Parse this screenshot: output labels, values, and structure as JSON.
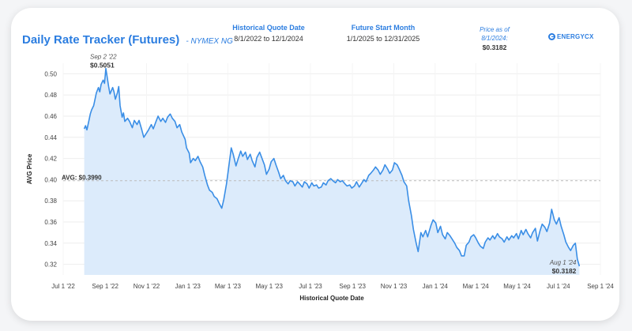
{
  "header": {
    "title_main": "Daily Rate Tracker",
    "title_paren": "(Futures)",
    "title_sub": "- NYMEX NG",
    "quote_date_label": "Historical Quote Date",
    "quote_date_value": "8/1/2022 to 12/1/2024",
    "future_start_label": "Future Start Month",
    "future_start_value": "1/1/2025 to 12/31/2025",
    "price_as_of_label_1": "Price as of",
    "price_as_of_label_2": "8/1/2024:",
    "price_as_of_value": "$0.3182",
    "logo_text": "ENERGYCX"
  },
  "colors": {
    "accent": "#2b7de0",
    "line": "#3a8ee6",
    "area": "#dcebfb",
    "avg_line": "#bbbbbb"
  },
  "chart_data": {
    "type": "area",
    "title": "Daily Rate Tracker (Futures)",
    "xlabel": "Historical Quote Date",
    "ylabel": "AVG Price",
    "ylim": [
      0.31,
      0.51
    ],
    "xlim": [
      "2022-07-01",
      "2024-09-01"
    ],
    "y_ticks": [
      "0.32",
      "0.34",
      "0.36",
      "0.38",
      "0.40",
      "0.42",
      "0.44",
      "0.46",
      "0.48",
      "0.50"
    ],
    "x_ticks": [
      {
        "date": "2022-07-01",
        "label": "Jul 1 '22"
      },
      {
        "date": "2022-09-01",
        "label": "Sep 1 '22"
      },
      {
        "date": "2022-11-01",
        "label": "Nov 1 '22"
      },
      {
        "date": "2023-01-01",
        "label": "Jan 1 '23"
      },
      {
        "date": "2023-03-01",
        "label": "Mar 1 '23"
      },
      {
        "date": "2023-05-01",
        "label": "May 1 '23"
      },
      {
        "date": "2023-07-01",
        "label": "Jul 1 '23"
      },
      {
        "date": "2023-09-01",
        "label": "Sep 1 '23"
      },
      {
        "date": "2023-11-01",
        "label": "Nov 1 '23"
      },
      {
        "date": "2024-01-01",
        "label": "Jan 1 '24"
      },
      {
        "date": "2024-03-01",
        "label": "Mar 1 '24"
      },
      {
        "date": "2024-05-01",
        "label": "May 1 '24"
      },
      {
        "date": "2024-07-01",
        "label": "Jul 1 '24"
      },
      {
        "date": "2024-09-01",
        "label": "Sep 1 '24"
      }
    ],
    "grid": true,
    "reference_line": {
      "value": 0.399,
      "label": "AVG: $0.3990"
    },
    "annotations": [
      {
        "date": "2022-09-02",
        "date_label": "Sep 2 '22",
        "value_label": "$0.5051"
      },
      {
        "date": "2024-08-01",
        "date_label": "Aug 1 '24",
        "value_label": "$0.3182"
      }
    ],
    "series": [
      {
        "points": [
          [
            "2022-08-01",
            0.448
          ],
          [
            "2022-08-03",
            0.451
          ],
          [
            "2022-08-05",
            0.447
          ],
          [
            "2022-08-08",
            0.456
          ],
          [
            "2022-08-10",
            0.462
          ],
          [
            "2022-08-12",
            0.466
          ],
          [
            "2022-08-15",
            0.47
          ],
          [
            "2022-08-17",
            0.476
          ],
          [
            "2022-08-19",
            0.482
          ],
          [
            "2022-08-22",
            0.487
          ],
          [
            "2022-08-24",
            0.483
          ],
          [
            "2022-08-26",
            0.49
          ],
          [
            "2022-08-29",
            0.494
          ],
          [
            "2022-08-31",
            0.491
          ],
          [
            "2022-09-02",
            0.505
          ],
          [
            "2022-09-06",
            0.488
          ],
          [
            "2022-09-08",
            0.481
          ],
          [
            "2022-09-12",
            0.487
          ],
          [
            "2022-09-14",
            0.483
          ],
          [
            "2022-09-16",
            0.476
          ],
          [
            "2022-09-19",
            0.482
          ],
          [
            "2022-09-21",
            0.488
          ],
          [
            "2022-09-23",
            0.47
          ],
          [
            "2022-09-26",
            0.459
          ],
          [
            "2022-09-28",
            0.463
          ],
          [
            "2022-09-30",
            0.455
          ],
          [
            "2022-10-04",
            0.458
          ],
          [
            "2022-10-07",
            0.455
          ],
          [
            "2022-10-11",
            0.449
          ],
          [
            "2022-10-14",
            0.456
          ],
          [
            "2022-10-18",
            0.452
          ],
          [
            "2022-10-21",
            0.456
          ],
          [
            "2022-10-25",
            0.447
          ],
          [
            "2022-10-28",
            0.44
          ],
          [
            "2022-11-01",
            0.444
          ],
          [
            "2022-11-04",
            0.447
          ],
          [
            "2022-11-08",
            0.452
          ],
          [
            "2022-11-11",
            0.448
          ],
          [
            "2022-11-15",
            0.455
          ],
          [
            "2022-11-18",
            0.46
          ],
          [
            "2022-11-22",
            0.455
          ],
          [
            "2022-11-25",
            0.458
          ],
          [
            "2022-11-29",
            0.454
          ],
          [
            "2022-12-02",
            0.459
          ],
          [
            "2022-12-06",
            0.462
          ],
          [
            "2022-12-09",
            0.458
          ],
          [
            "2022-12-13",
            0.455
          ],
          [
            "2022-12-16",
            0.449
          ],
          [
            "2022-12-20",
            0.452
          ],
          [
            "2022-12-23",
            0.445
          ],
          [
            "2022-12-28",
            0.438
          ],
          [
            "2022-12-30",
            0.43
          ],
          [
            "2023-01-03",
            0.425
          ],
          [
            "2023-01-05",
            0.416
          ],
          [
            "2023-01-09",
            0.42
          ],
          [
            "2023-01-12",
            0.418
          ],
          [
            "2023-01-16",
            0.422
          ],
          [
            "2023-01-19",
            0.417
          ],
          [
            "2023-01-23",
            0.412
          ],
          [
            "2023-01-26",
            0.404
          ],
          [
            "2023-01-30",
            0.395
          ],
          [
            "2023-02-02",
            0.39
          ],
          [
            "2023-02-06",
            0.388
          ],
          [
            "2023-02-09",
            0.384
          ],
          [
            "2023-02-13",
            0.382
          ],
          [
            "2023-02-16",
            0.378
          ],
          [
            "2023-02-20",
            0.373
          ],
          [
            "2023-02-23",
            0.381
          ],
          [
            "2023-02-27",
            0.396
          ],
          [
            "2023-03-02",
            0.41
          ],
          [
            "2023-03-06",
            0.43
          ],
          [
            "2023-03-09",
            0.424
          ],
          [
            "2023-03-13",
            0.413
          ],
          [
            "2023-03-16",
            0.419
          ],
          [
            "2023-03-20",
            0.427
          ],
          [
            "2023-03-23",
            0.422
          ],
          [
            "2023-03-27",
            0.426
          ],
          [
            "2023-03-30",
            0.419
          ],
          [
            "2023-04-03",
            0.424
          ],
          [
            "2023-04-06",
            0.418
          ],
          [
            "2023-04-10",
            0.412
          ],
          [
            "2023-04-13",
            0.421
          ],
          [
            "2023-04-17",
            0.426
          ],
          [
            "2023-04-20",
            0.421
          ],
          [
            "2023-04-24",
            0.414
          ],
          [
            "2023-04-27",
            0.405
          ],
          [
            "2023-05-01",
            0.41
          ],
          [
            "2023-05-04",
            0.417
          ],
          [
            "2023-05-08",
            0.42
          ],
          [
            "2023-05-11",
            0.414
          ],
          [
            "2023-05-15",
            0.407
          ],
          [
            "2023-05-18",
            0.401
          ],
          [
            "2023-05-22",
            0.404
          ],
          [
            "2023-05-25",
            0.399
          ],
          [
            "2023-05-29",
            0.396
          ],
          [
            "2023-06-01",
            0.399
          ],
          [
            "2023-06-05",
            0.398
          ],
          [
            "2023-06-08",
            0.394
          ],
          [
            "2023-06-12",
            0.398
          ],
          [
            "2023-06-15",
            0.396
          ],
          [
            "2023-06-19",
            0.393
          ],
          [
            "2023-06-22",
            0.398
          ],
          [
            "2023-06-26",
            0.396
          ],
          [
            "2023-06-29",
            0.392
          ],
          [
            "2023-07-03",
            0.397
          ],
          [
            "2023-07-06",
            0.394
          ],
          [
            "2023-07-10",
            0.395
          ],
          [
            "2023-07-13",
            0.392
          ],
          [
            "2023-07-17",
            0.393
          ],
          [
            "2023-07-20",
            0.397
          ],
          [
            "2023-07-24",
            0.395
          ],
          [
            "2023-07-27",
            0.399
          ],
          [
            "2023-07-31",
            0.401
          ],
          [
            "2023-08-03",
            0.399
          ],
          [
            "2023-08-07",
            0.397
          ],
          [
            "2023-08-10",
            0.4
          ],
          [
            "2023-08-14",
            0.398
          ],
          [
            "2023-08-17",
            0.399
          ],
          [
            "2023-08-21",
            0.396
          ],
          [
            "2023-08-24",
            0.394
          ],
          [
            "2023-08-28",
            0.395
          ],
          [
            "2023-08-31",
            0.392
          ],
          [
            "2023-09-04",
            0.394
          ],
          [
            "2023-09-07",
            0.398
          ],
          [
            "2023-09-11",
            0.393
          ],
          [
            "2023-09-14",
            0.396
          ],
          [
            "2023-09-18",
            0.4
          ],
          [
            "2023-09-21",
            0.398
          ],
          [
            "2023-09-25",
            0.404
          ],
          [
            "2023-09-28",
            0.406
          ],
          [
            "2023-10-02",
            0.409
          ],
          [
            "2023-10-05",
            0.412
          ],
          [
            "2023-10-09",
            0.409
          ],
          [
            "2023-10-12",
            0.405
          ],
          [
            "2023-10-16",
            0.409
          ],
          [
            "2023-10-19",
            0.414
          ],
          [
            "2023-10-23",
            0.41
          ],
          [
            "2023-10-26",
            0.406
          ],
          [
            "2023-10-30",
            0.409
          ],
          [
            "2023-11-02",
            0.416
          ],
          [
            "2023-11-06",
            0.414
          ],
          [
            "2023-11-09",
            0.41
          ],
          [
            "2023-11-13",
            0.404
          ],
          [
            "2023-11-16",
            0.398
          ],
          [
            "2023-11-20",
            0.394
          ],
          [
            "2023-11-23",
            0.38
          ],
          [
            "2023-11-27",
            0.366
          ],
          [
            "2023-11-30",
            0.353
          ],
          [
            "2023-12-04",
            0.34
          ],
          [
            "2023-12-07",
            0.332
          ],
          [
            "2023-12-11",
            0.35
          ],
          [
            "2023-12-14",
            0.346
          ],
          [
            "2023-12-18",
            0.352
          ],
          [
            "2023-12-21",
            0.346
          ],
          [
            "2023-12-26",
            0.357
          ],
          [
            "2023-12-29",
            0.362
          ],
          [
            "2024-01-02",
            0.359
          ],
          [
            "2024-01-05",
            0.35
          ],
          [
            "2024-01-09",
            0.356
          ],
          [
            "2024-01-12",
            0.348
          ],
          [
            "2024-01-16",
            0.344
          ],
          [
            "2024-01-19",
            0.35
          ],
          [
            "2024-01-23",
            0.347
          ],
          [
            "2024-01-26",
            0.344
          ],
          [
            "2024-01-30",
            0.34
          ],
          [
            "2024-02-02",
            0.336
          ],
          [
            "2024-02-06",
            0.333
          ],
          [
            "2024-02-09",
            0.328
          ],
          [
            "2024-02-13",
            0.328
          ],
          [
            "2024-02-16",
            0.338
          ],
          [
            "2024-02-20",
            0.341
          ],
          [
            "2024-02-23",
            0.346
          ],
          [
            "2024-02-27",
            0.348
          ],
          [
            "2024-03-01",
            0.345
          ],
          [
            "2024-03-05",
            0.34
          ],
          [
            "2024-03-08",
            0.337
          ],
          [
            "2024-03-12",
            0.335
          ],
          [
            "2024-03-15",
            0.341
          ],
          [
            "2024-03-19",
            0.345
          ],
          [
            "2024-03-22",
            0.343
          ],
          [
            "2024-03-26",
            0.347
          ],
          [
            "2024-03-29",
            0.344
          ],
          [
            "2024-04-02",
            0.349
          ],
          [
            "2024-04-05",
            0.346
          ],
          [
            "2024-04-09",
            0.344
          ],
          [
            "2024-04-12",
            0.341
          ],
          [
            "2024-04-16",
            0.346
          ],
          [
            "2024-04-19",
            0.343
          ],
          [
            "2024-04-23",
            0.347
          ],
          [
            "2024-04-26",
            0.345
          ],
          [
            "2024-04-30",
            0.349
          ],
          [
            "2024-05-03",
            0.344
          ],
          [
            "2024-05-07",
            0.352
          ],
          [
            "2024-05-10",
            0.348
          ],
          [
            "2024-05-14",
            0.353
          ],
          [
            "2024-05-17",
            0.349
          ],
          [
            "2024-05-21",
            0.345
          ],
          [
            "2024-05-24",
            0.35
          ],
          [
            "2024-05-28",
            0.354
          ],
          [
            "2024-05-31",
            0.342
          ],
          [
            "2024-06-04",
            0.352
          ],
          [
            "2024-06-07",
            0.358
          ],
          [
            "2024-06-11",
            0.355
          ],
          [
            "2024-06-14",
            0.351
          ],
          [
            "2024-06-18",
            0.359
          ],
          [
            "2024-06-21",
            0.372
          ],
          [
            "2024-06-25",
            0.362
          ],
          [
            "2024-06-28",
            0.358
          ],
          [
            "2024-07-02",
            0.364
          ],
          [
            "2024-07-05",
            0.356
          ],
          [
            "2024-07-09",
            0.348
          ],
          [
            "2024-07-12",
            0.341
          ],
          [
            "2024-07-16",
            0.336
          ],
          [
            "2024-07-19",
            0.333
          ],
          [
            "2024-07-23",
            0.338
          ],
          [
            "2024-07-26",
            0.34
          ],
          [
            "2024-07-29",
            0.325
          ],
          [
            "2024-08-01",
            0.3182
          ]
        ]
      }
    ]
  }
}
